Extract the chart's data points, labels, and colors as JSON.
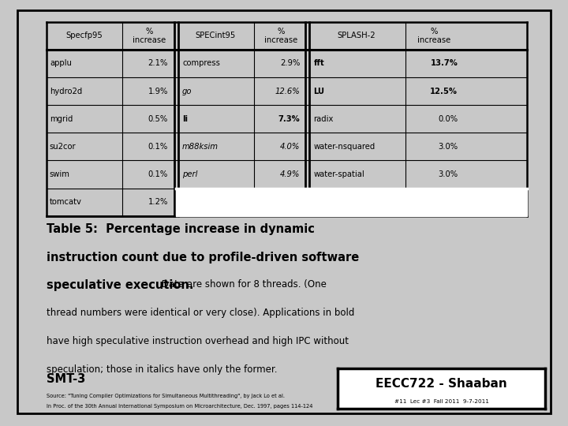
{
  "header_row": [
    {
      "text": "Specfp95",
      "style": "normal"
    },
    {
      "text": "%\nincrease",
      "style": "normal"
    },
    {
      "text": "SPECint95",
      "style": "normal"
    },
    {
      "text": "%\nincrease",
      "style": "normal"
    },
    {
      "text": "SPLASH-2",
      "style": "normal"
    },
    {
      "text": "%\nincrease",
      "style": "normal"
    }
  ],
  "col1_rows": [
    [
      {
        "text": "applu",
        "style": "normal"
      },
      {
        "text": "2.1%",
        "style": "normal"
      }
    ],
    [
      {
        "text": "hydro2d",
        "style": "normal"
      },
      {
        "text": "1.9%",
        "style": "normal"
      }
    ],
    [
      {
        "text": "mgrid",
        "style": "normal"
      },
      {
        "text": "0.5%",
        "style": "normal"
      }
    ],
    [
      {
        "text": "su2cor",
        "style": "normal"
      },
      {
        "text": "0.1%",
        "style": "normal"
      }
    ],
    [
      {
        "text": "swim",
        "style": "normal"
      },
      {
        "text": "0.1%",
        "style": "normal"
      }
    ],
    [
      {
        "text": "tomcatv",
        "style": "normal"
      },
      {
        "text": "1.2%",
        "style": "normal"
      }
    ]
  ],
  "col2_rows": [
    [
      {
        "text": "compress",
        "style": "normal"
      },
      {
        "text": "2.9%",
        "style": "normal"
      }
    ],
    [
      {
        "text": "go",
        "style": "italic"
      },
      {
        "text": "12.6%",
        "style": "italic"
      }
    ],
    [
      {
        "text": "li",
        "style": "bold"
      },
      {
        "text": "7.3%",
        "style": "bold"
      }
    ],
    [
      {
        "text": "m88ksim",
        "style": "italic"
      },
      {
        "text": "4.0%",
        "style": "italic"
      }
    ],
    [
      {
        "text": "perl",
        "style": "italic"
      },
      {
        "text": "4.9%",
        "style": "italic"
      }
    ]
  ],
  "col3_rows": [
    [
      {
        "text": "fft",
        "style": "bold"
      },
      {
        "text": "13.7%",
        "style": "bold"
      }
    ],
    [
      {
        "text": "LU",
        "style": "bold"
      },
      {
        "text": "12.5%",
        "style": "bold"
      }
    ],
    [
      {
        "text": "radix",
        "style": "normal"
      },
      {
        "text": "0.0%",
        "style": "normal"
      }
    ],
    [
      {
        "text": "water-nsquared",
        "style": "normal"
      },
      {
        "text": "3.0%",
        "style": "normal"
      }
    ],
    [
      {
        "text": "water-spatial",
        "style": "normal"
      },
      {
        "text": "3.0%",
        "style": "normal"
      }
    ]
  ],
  "caption_line1_bold": "Table 5:  Percentage increase in dynamic",
  "caption_line2_bold": "instruction count due to profile-driven software",
  "caption_line3_bold": "speculative execution.",
  "caption_line3_normal": " Data are shown for 8 threads. (One",
  "caption_line4": "thread numbers were identical or very close). Applications in bold",
  "caption_line5": "have high speculative instruction overhead and high IPC without",
  "caption_line6": "speculation; those in italics have only the former.",
  "footer_left": "SMT-3",
  "footer_source1": "Source: \"Tuning Compiler Optimizations for Simultaneous Multithreading\", by Jack Lo et al.",
  "footer_source2": "In Proc. of the 30th Annual International Symposium on Microarchitecture, Dec. 1997, pages 114-124",
  "footer_right_main": "EECC722 - Shaaban",
  "footer_right_sub": "#11  Lec #3  Fall 2011  9-7-2011",
  "outer_bg": "#c8c8c8",
  "inner_bg": "#ffffff"
}
